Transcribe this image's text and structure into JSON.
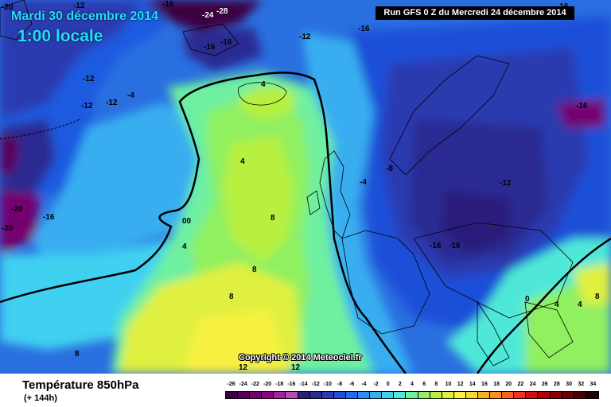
{
  "header": {
    "date": "Mardi 30 décembre 2014",
    "time": "1:00 locale",
    "run": "Run GFS 0 Z du Mercredi 24 décembre 2014"
  },
  "map": {
    "copyright": "Copyright © 2014 Meteociel.fr",
    "labels": [
      "-12",
      "-16",
      "-20",
      "-24",
      "-28",
      "-16",
      "-16",
      "-12",
      "-12",
      "-12",
      "-12",
      "-4",
      "4",
      "-16",
      "-16",
      "4",
      "-20",
      "-16",
      "00",
      "-20",
      "8",
      "4",
      "8",
      "-8",
      "-4",
      "-12",
      "8",
      "-16",
      "-16",
      "0",
      "4",
      "4",
      "8",
      "12",
      "12",
      "-16",
      "8"
    ]
  },
  "legend": {
    "title": "Température 850hPa",
    "subtitle": "(+ 144h)",
    "scale_values": [
      "-26",
      "-24",
      "-22",
      "-20",
      "-18",
      "-16",
      "-14",
      "-12",
      "-10",
      "-8",
      "-6",
      "-4",
      "-2",
      "0",
      "2",
      "4",
      "6",
      "8",
      "10",
      "12",
      "14",
      "16",
      "18",
      "20",
      "22",
      "24",
      "26",
      "28",
      "30",
      "32",
      "34"
    ],
    "scale_colors": [
      "#3c0040",
      "#5a005a",
      "#750070",
      "#900085",
      "#a8209c",
      "#b84ab0",
      "#2a1f7a",
      "#2b2c92",
      "#2b3bb0",
      "#1f4fd8",
      "#1f6cf0",
      "#2a8ef5",
      "#38aef0",
      "#40d0f0",
      "#50e8d8",
      "#6ef0a0",
      "#90f060",
      "#b8f040",
      "#e0f040",
      "#f8f040",
      "#f8d830",
      "#f8b020",
      "#f89020",
      "#f86020",
      "#f03020",
      "#d01010",
      "#b00000",
      "#900000",
      "#700000",
      "#500000",
      "#200000"
    ]
  }
}
